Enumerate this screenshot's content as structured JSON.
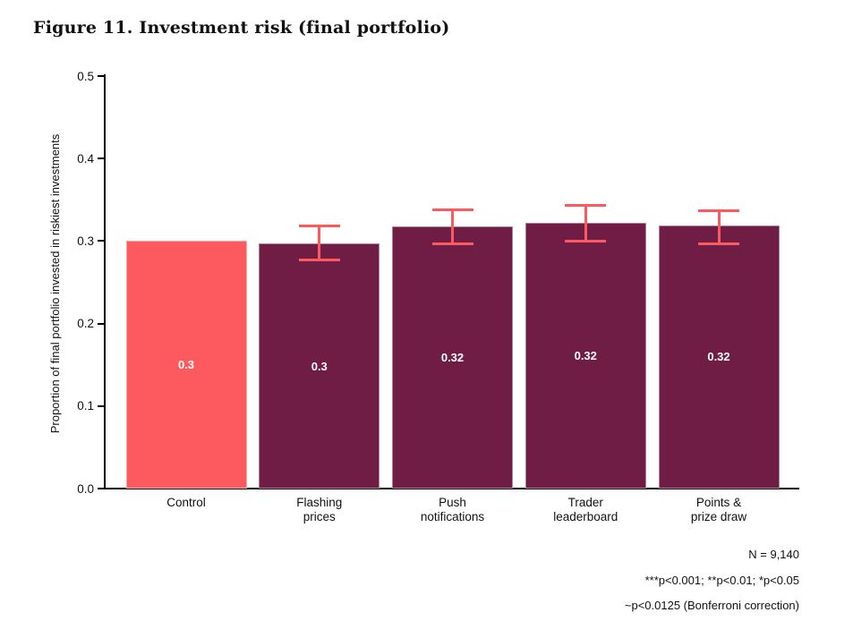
{
  "figure": {
    "title": "Figure 11. Investment risk (final portfolio)"
  },
  "chart_data": {
    "type": "bar",
    "title": "Figure 11. Investment risk (final portfolio)",
    "xlabel": "",
    "ylabel": "Proportion of final portfolio invested in riskiest investments",
    "ylim": [
      0.0,
      0.5
    ],
    "ytick_labels": [
      "0.0",
      "0.1",
      "0.2",
      "0.3",
      "0.4",
      "0.5"
    ],
    "ytick_values": [
      0.0,
      0.1,
      0.2,
      0.3,
      0.4,
      0.5
    ],
    "grid": false,
    "legend": "none",
    "categories": [
      "Control",
      "Flashing prices",
      "Push notifications",
      "Trader leaderboard",
      "Points & prize draw"
    ],
    "bars": [
      {
        "category_lines": [
          "Control"
        ],
        "value": 0.3,
        "value_label": "0.3",
        "color": "#FD5A5F",
        "ci": null
      },
      {
        "category_lines": [
          "Flashing",
          "prices"
        ],
        "value": 0.297,
        "value_label": "0.3",
        "color": "#6F1D45",
        "ci": [
          0.277,
          0.318
        ]
      },
      {
        "category_lines": [
          "Push",
          "notifications"
        ],
        "value": 0.318,
        "value_label": "0.32",
        "color": "#6F1D45",
        "ci": [
          0.297,
          0.338
        ]
      },
      {
        "category_lines": [
          "Trader",
          "leaderboard"
        ],
        "value": 0.322,
        "value_label": "0.32",
        "color": "#6F1D45",
        "ci": [
          0.3,
          0.343
        ]
      },
      {
        "category_lines": [
          "Points &",
          "prize draw"
        ],
        "value": 0.319,
        "value_label": "0.32",
        "color": "#6F1D45",
        "ci": [
          0.297,
          0.337
        ]
      }
    ],
    "annotations": [
      "N = 9,140",
      "***p<0.001; **p<0.01; *p<0.05",
      "~p<0.0125 (Bonferroni correction)"
    ],
    "colors": {
      "control_bar": "#FD5A5F",
      "treatment_bar": "#6F1D45",
      "error_bar": "#FC5A5F",
      "axis": "#000000",
      "value_label_text": "#FFFFFF"
    }
  }
}
